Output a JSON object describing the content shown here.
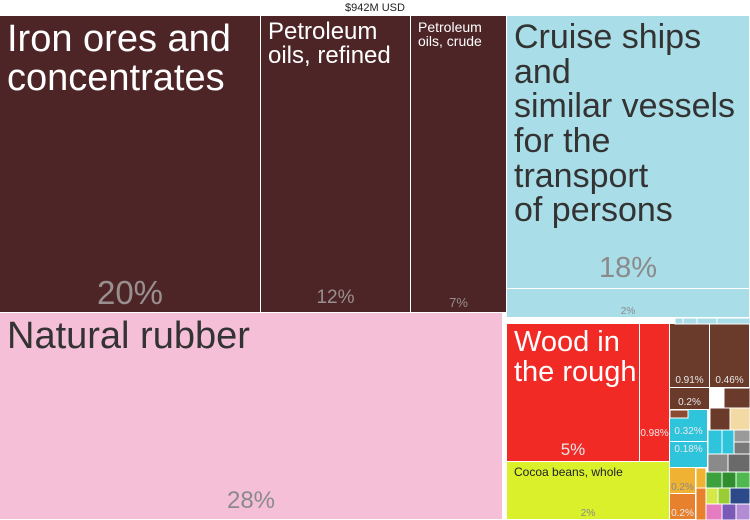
{
  "total_label": "$942M USD",
  "chart_data": {
    "type": "treemap",
    "total": "$942M USD",
    "items": [
      {
        "name": "Iron ores and concentrates",
        "value": 20,
        "label": "20%",
        "color": "#4e2526"
      },
      {
        "name": "Petroleum oils, refined",
        "value": 12,
        "label": "12%",
        "color": "#4e2526"
      },
      {
        "name": "Petroleum oils, crude",
        "value": 7,
        "label": "7%",
        "color": "#4e2526"
      },
      {
        "name": "Cruise ships and similar vessels for the transport of persons",
        "value": 18,
        "label": "18%",
        "color": "#a9dde7"
      },
      {
        "name": "",
        "value": 2,
        "label": "2%",
        "color": "#a9dde7"
      },
      {
        "name": "Natural rubber",
        "value": 28,
        "label": "28%",
        "color": "#f5bfd8"
      },
      {
        "name": "Wood in the rough",
        "value": 5,
        "label": "5%",
        "color": "#f12a26"
      },
      {
        "name": "",
        "value": 0.98,
        "label": "0.98%",
        "color": "#f12a26"
      },
      {
        "name": "Cocoa beans, whole",
        "value": 2,
        "label": "2%",
        "color": "#d9f02a"
      },
      {
        "name": "",
        "value": 0.91,
        "label": "0.91%",
        "color": "#6a3a2a"
      },
      {
        "name": "",
        "value": 0.46,
        "label": "0.46%",
        "color": "#6a3a2a"
      },
      {
        "name": "",
        "value": 0.2,
        "label": "0.2%",
        "color": "#6a3a2a"
      },
      {
        "name": "",
        "value": 0.32,
        "label": "0.32%",
        "color": "#2ec4dc"
      },
      {
        "name": "",
        "value": 0.18,
        "label": "0.18%",
        "color": "#2ec4dc"
      },
      {
        "name": "",
        "value": 0.2,
        "label": "0.2%",
        "color": "#f0b232"
      },
      {
        "name": "",
        "value": 0.2,
        "label": "0.2%",
        "color": "#e8812e"
      }
    ]
  }
}
